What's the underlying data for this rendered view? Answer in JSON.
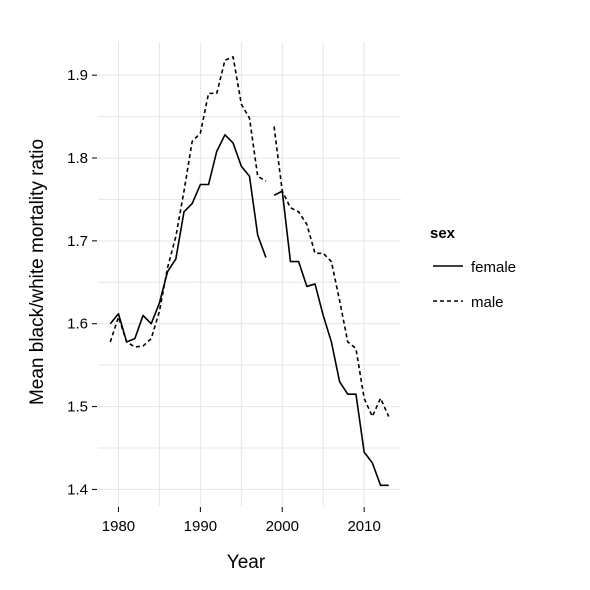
{
  "chart_data": {
    "type": "line",
    "xlabel": "Year",
    "ylabel": "Mean black/white mortality ratio",
    "xlim": [
      1977.5,
      2014.5
    ],
    "ylim": [
      1.38,
      1.94
    ],
    "x_ticks": [
      1980,
      1990,
      2000,
      2010
    ],
    "y_ticks": [
      1.4,
      1.5,
      1.6,
      1.7,
      1.8,
      1.9
    ],
    "x_tick_labels": [
      "1980",
      "1990",
      "2000",
      "2010"
    ],
    "y_tick_labels": [
      "1.4",
      "1.5",
      "1.6",
      "1.7",
      "1.8",
      "1.9"
    ],
    "grid": true,
    "legend": {
      "title": "sex",
      "placement": "right",
      "entries": [
        {
          "label": "female",
          "line_style": "solid"
        },
        {
          "label": "male",
          "line_style": "dashed"
        }
      ]
    },
    "series": [
      {
        "name": "female",
        "line_style": "solid",
        "x": [
          1979,
          1980,
          1981,
          1982,
          1983,
          1984,
          1985,
          1986,
          1987,
          1988,
          1989,
          1990,
          1991,
          1992,
          1993,
          1994,
          1995,
          1996,
          1997,
          1998,
          null,
          1999,
          2000,
          2001,
          2002,
          2003,
          2004,
          2005,
          2006,
          2007,
          2008,
          2009,
          2010,
          2011,
          2012,
          2013
        ],
        "y": [
          1.6,
          1.612,
          1.578,
          1.582,
          1.61,
          1.6,
          1.625,
          1.663,
          1.678,
          1.735,
          1.745,
          1.768,
          1.768,
          1.808,
          1.828,
          1.818,
          1.79,
          1.778,
          1.707,
          1.68,
          null,
          1.755,
          1.76,
          1.675,
          1.675,
          1.645,
          1.648,
          1.61,
          1.578,
          1.53,
          1.515,
          1.515,
          1.445,
          1.432,
          1.405,
          1.405
        ]
      },
      {
        "name": "male",
        "line_style": "dashed",
        "x": [
          1979,
          1980,
          1981,
          1982,
          1983,
          1984,
          1985,
          1986,
          1987,
          1988,
          1989,
          1990,
          1991,
          1992,
          1993,
          1994,
          1995,
          1996,
          1997,
          1998,
          null,
          1999,
          2000,
          2001,
          2002,
          2003,
          2004,
          2005,
          2006,
          2007,
          2008,
          2009,
          2010,
          2011,
          2012,
          2013
        ],
        "y": [
          1.578,
          1.608,
          1.578,
          1.572,
          1.573,
          1.582,
          1.615,
          1.668,
          1.705,
          1.76,
          1.82,
          1.83,
          1.878,
          1.878,
          1.918,
          1.922,
          1.865,
          1.848,
          1.778,
          1.772,
          null,
          1.838,
          1.76,
          1.74,
          1.735,
          1.72,
          1.685,
          1.685,
          1.675,
          1.628,
          1.578,
          1.57,
          1.51,
          1.488,
          1.51,
          1.488
        ]
      }
    ]
  }
}
